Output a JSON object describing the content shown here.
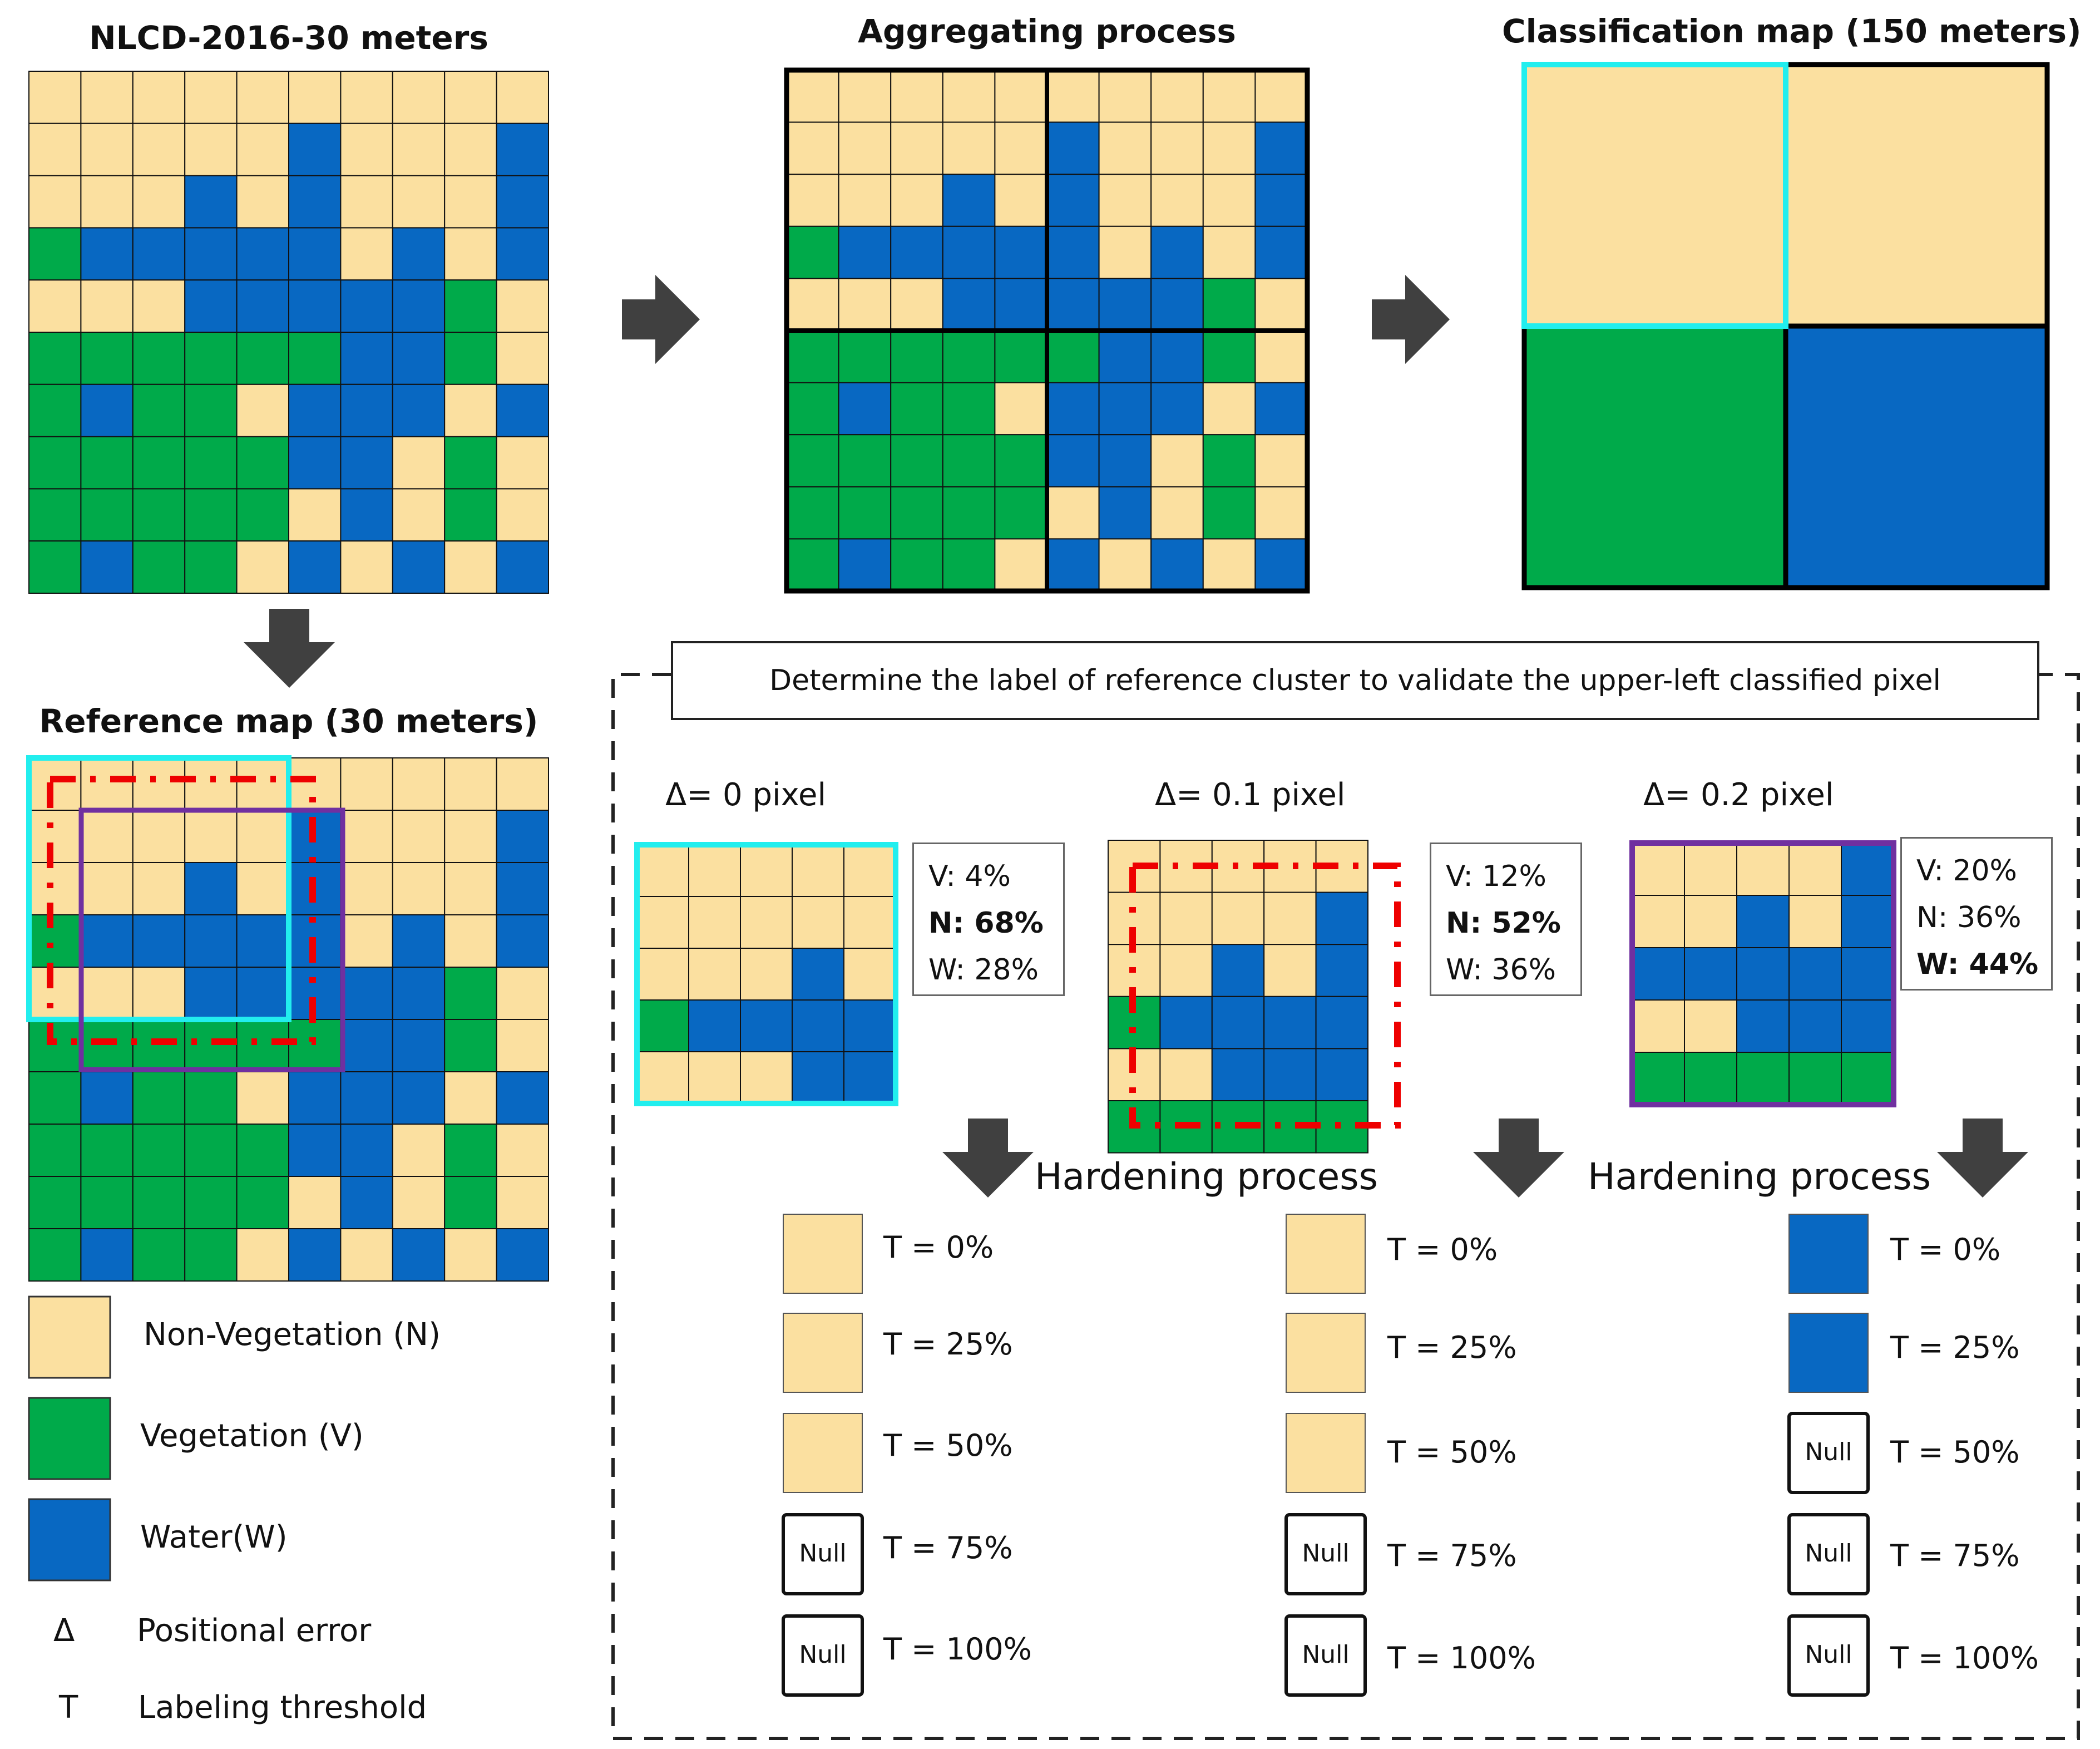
{
  "colors": {
    "non_vegetation": "#FBE0A0",
    "vegetation": "#00AA4A",
    "water": "#0868C2",
    "cyan_frame": "#22EEEE",
    "purple_frame": "#7030A0",
    "red_dash": "#EE0000",
    "arrow": "#404040"
  },
  "titles": {
    "nlcd": "NLCD-2016-30 meters",
    "aggregating": "Aggregating process",
    "classification": "Classification map (150 meters)",
    "reference": "Reference map (30 meters)"
  },
  "grid_key": {
    "N": "non_vegetation",
    "V": "vegetation",
    "W": "water"
  },
  "nlcd_grid": [
    "NNNNNNNNNN",
    "NNNNNWNNNW",
    "NNNWNWNNNW",
    "VWWWWWNWNW",
    "NNNWWWWWVN",
    "VVVVVVWWVN",
    "VWVVNWWWNW",
    "VVVVVWWNVN",
    "VVVVVNWNVN",
    "VWVVNWNWNW"
  ],
  "classification_grid": [
    "NN",
    "VW"
  ],
  "validation_panel": {
    "banner": "Determine the label of reference cluster to validate the upper-left classified pixel",
    "hardening_label": "Hardening process",
    "cases": [
      {
        "delta": "Δ= 0 pixel",
        "grid": [
          "NNNNN",
          "NNNNN",
          "NNNWN",
          "VWWWW",
          "NNNWW"
        ],
        "stats": [
          "V: 4%",
          "N: 68%",
          "W: 28%"
        ],
        "bold_index": 1,
        "thresholds": [
          {
            "t": "T = 0%",
            "result": "N"
          },
          {
            "t": "T = 25%",
            "result": "N"
          },
          {
            "t": "T = 50%",
            "result": "N"
          },
          {
            "t": "T = 75%",
            "result": "Null"
          },
          {
            "t": "T = 100%",
            "result": "Null"
          }
        ]
      },
      {
        "delta": "Δ= 0.1 pixel",
        "grid": [
          "NNNNN",
          "NNNNW",
          "NNWNW",
          "VWWWW",
          "NNWWW",
          "VVVVV"
        ],
        "stats": [
          "V: 12%",
          "N: 52%",
          "W: 36%"
        ],
        "bold_index": 1,
        "thresholds": [
          {
            "t": "T = 0%",
            "result": "N"
          },
          {
            "t": "T = 25%",
            "result": "N"
          },
          {
            "t": "T = 50%",
            "result": "N"
          },
          {
            "t": "T = 75%",
            "result": "Null"
          },
          {
            "t": "T = 100%",
            "result": "Null"
          }
        ]
      },
      {
        "delta": "Δ= 0.2 pixel",
        "grid": [
          "NNNNW",
          "NNWNW",
          "WWWWW",
          "NNWWW",
          "VVVVV"
        ],
        "stats": [
          "V: 20%",
          "N: 36%",
          "W: 44%"
        ],
        "bold_index": 2,
        "thresholds": [
          {
            "t": "T = 0%",
            "result": "W"
          },
          {
            "t": "T = 25%",
            "result": "W"
          },
          {
            "t": "T = 50%",
            "result": "Null"
          },
          {
            "t": "T = 75%",
            "result": "Null"
          },
          {
            "t": "T = 100%",
            "result": "Null"
          }
        ]
      }
    ]
  },
  "legend": [
    {
      "class": "N",
      "label": "Non-Vegetation (N)"
    },
    {
      "class": "V",
      "label": "Vegetation (V)"
    },
    {
      "class": "W",
      "label": "Water(W)"
    }
  ],
  "symbols": [
    {
      "symbol": "Δ",
      "label": "Positional error"
    },
    {
      "symbol": "T",
      "label": "Labeling threshold"
    }
  ],
  "null_label": "Null"
}
